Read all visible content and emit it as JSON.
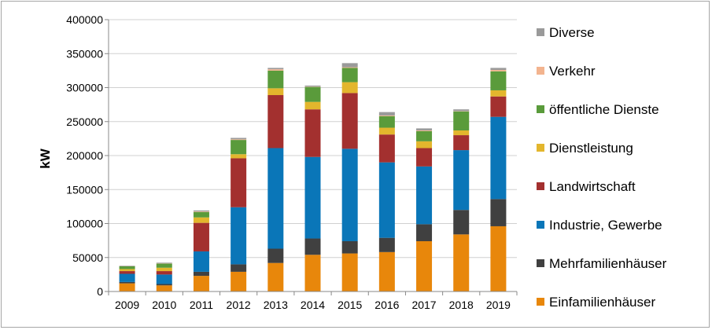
{
  "chart_data": {
    "type": "bar",
    "stacked": true,
    "title": "",
    "xlabel": "",
    "ylabel": "kW",
    "ylim": [
      0,
      400000
    ],
    "yticks": [
      "0",
      "50000",
      "100000",
      "150000",
      "200000",
      "250000",
      "300000",
      "350000",
      "400000"
    ],
    "grid": "horizontal",
    "legend": "right",
    "categories": [
      "2009",
      "2010",
      "2011",
      "2012",
      "2013",
      "2014",
      "2015",
      "2016",
      "2017",
      "2018",
      "2019"
    ],
    "series": [
      {
        "name": "Einfamilienhäuser",
        "color": "#e8870b",
        "values": [
          12000,
          9000,
          23000,
          29000,
          42000,
          54000,
          56000,
          58000,
          74000,
          84000,
          96000
        ]
      },
      {
        "name": "Mehrfamilienhäuser",
        "color": "#404040",
        "values": [
          2000,
          2000,
          6000,
          11000,
          21000,
          24000,
          18000,
          21000,
          25000,
          36000,
          40000
        ]
      },
      {
        "name": "Industrie, Gewerbe",
        "color": "#0a76b8",
        "values": [
          12000,
          14000,
          30000,
          84000,
          148000,
          120000,
          136000,
          111000,
          85000,
          88000,
          121000
        ]
      },
      {
        "name": "Landwirtschaft",
        "color": "#a3302f",
        "values": [
          4000,
          5000,
          42000,
          72000,
          78000,
          70000,
          82000,
          41000,
          27000,
          22000,
          30000
        ]
      },
      {
        "name": "Dienstleistung",
        "color": "#e3b62d",
        "values": [
          3000,
          5000,
          8000,
          6000,
          10000,
          11000,
          16000,
          10000,
          10000,
          7000,
          9000
        ]
      },
      {
        "name": "öffentliche Dienste",
        "color": "#5a9b3b",
        "values": [
          4000,
          6000,
          8000,
          21000,
          26000,
          22000,
          21000,
          17000,
          15000,
          28000,
          28000
        ]
      },
      {
        "name": "Verkehr",
        "color": "#f3b48f",
        "values": [
          300,
          400,
          800,
          1000,
          2000,
          500,
          1000,
          1000,
          1000,
          500,
          2000
        ]
      },
      {
        "name": "Diverse",
        "color": "#9a9a9a",
        "values": [
          700,
          1000,
          1500,
          2000,
          2000,
          1500,
          6000,
          5000,
          3000,
          2500,
          3000
        ]
      }
    ]
  }
}
